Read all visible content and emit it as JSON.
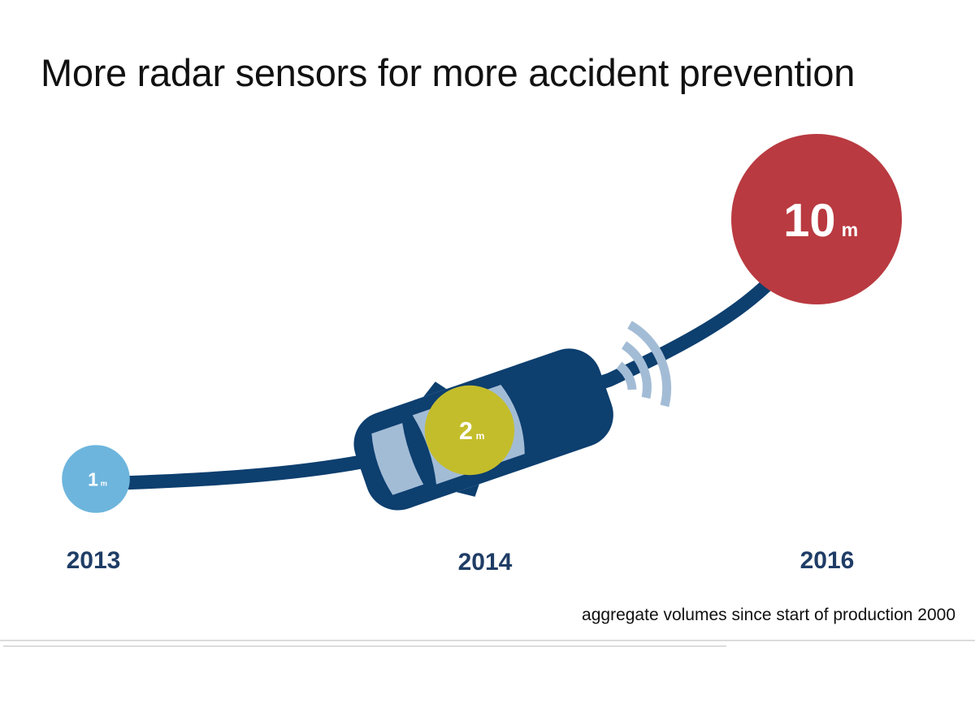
{
  "chart_data": {
    "type": "bubble",
    "title": "More radar sensors for more accident prevention",
    "note": "aggregate volumes since start of production 2000",
    "unit": "m",
    "categories": [
      "2013",
      "2014",
      "2016"
    ],
    "values": [
      1,
      2,
      10
    ],
    "labels": [
      "1",
      "2",
      "10"
    ],
    "colors": [
      "#6db5dd",
      "#c4bd2b",
      "#b93a40"
    ],
    "road_color": "#0d3f6f",
    "window_color": "#a3bcd6"
  }
}
